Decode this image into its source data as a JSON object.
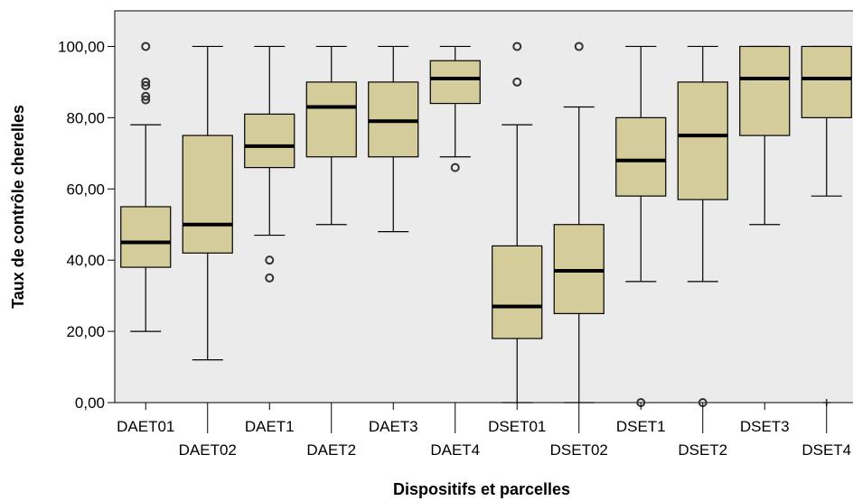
{
  "chart_data": {
    "type": "boxplot",
    "xlabel": "Dispositifs et parcelles",
    "ylabel": "Taux de contrôle cherelles",
    "ylim": [
      0,
      110
    ],
    "yticks": [
      "0,00",
      "20,00",
      "40,00",
      "60,00",
      "80,00",
      "100,00"
    ],
    "ytick_values": [
      0,
      20,
      40,
      60,
      80,
      100
    ],
    "grid": false,
    "colors": {
      "box_fill": "#d5cc9c",
      "plot_bg": "#ebebeb",
      "stroke": "#000000"
    },
    "categories": [
      "DAET01",
      "DAET02",
      "DAET1",
      "DAET2",
      "DAET3",
      "DAET4",
      "DSET01",
      "DSET02",
      "DSET1",
      "DSET2",
      "DSET3",
      "DSET4"
    ],
    "boxes": [
      {
        "label": "DAET01",
        "whisker_low": 20,
        "q1": 38,
        "median": 45,
        "q3": 55,
        "whisker_high": 78,
        "outliers": [
          85,
          86,
          89,
          90,
          100
        ],
        "extremes": []
      },
      {
        "label": "DAET02",
        "whisker_low": 12,
        "q1": 42,
        "median": 50,
        "q3": 75,
        "whisker_high": 100,
        "outliers": [],
        "extremes": []
      },
      {
        "label": "DAET1",
        "whisker_low": 47,
        "q1": 66,
        "median": 72,
        "q3": 81,
        "whisker_high": 100,
        "outliers": [
          35,
          40
        ],
        "extremes": []
      },
      {
        "label": "DAET2",
        "whisker_low": 50,
        "q1": 69,
        "median": 83,
        "q3": 90,
        "whisker_high": 100,
        "outliers": [],
        "extremes": []
      },
      {
        "label": "DAET3",
        "whisker_low": 48,
        "q1": 69,
        "median": 79,
        "q3": 90,
        "whisker_high": 100,
        "outliers": [],
        "extremes": []
      },
      {
        "label": "DAET4",
        "whisker_low": 69,
        "q1": 84,
        "median": 91,
        "q3": 96,
        "whisker_high": 100,
        "outliers": [
          66
        ],
        "extremes": []
      },
      {
        "label": "DSET01",
        "whisker_low": 0,
        "q1": 18,
        "median": 27,
        "q3": 44,
        "whisker_high": 78,
        "outliers": [
          90,
          100
        ],
        "extremes": []
      },
      {
        "label": "DSET02",
        "whisker_low": 0,
        "q1": 25,
        "median": 37,
        "q3": 50,
        "whisker_high": 83,
        "outliers": [
          100
        ],
        "extremes": []
      },
      {
        "label": "DSET1",
        "whisker_low": 34,
        "q1": 58,
        "median": 68,
        "q3": 80,
        "whisker_high": 100,
        "outliers": [
          0
        ],
        "extremes": []
      },
      {
        "label": "DSET2",
        "whisker_low": 34,
        "q1": 57,
        "median": 75,
        "q3": 90,
        "whisker_high": 100,
        "outliers": [
          0
        ],
        "extremes": []
      },
      {
        "label": "DSET3",
        "whisker_low": 50,
        "q1": 75,
        "median": 91,
        "q3": 100,
        "whisker_high": 100,
        "outliers": [],
        "extremes": []
      },
      {
        "label": "DSET4",
        "whisker_low": 58,
        "q1": 80,
        "median": 91,
        "q3": 100,
        "whisker_high": 100,
        "outliers": [],
        "extremes": [
          0
        ]
      }
    ]
  }
}
